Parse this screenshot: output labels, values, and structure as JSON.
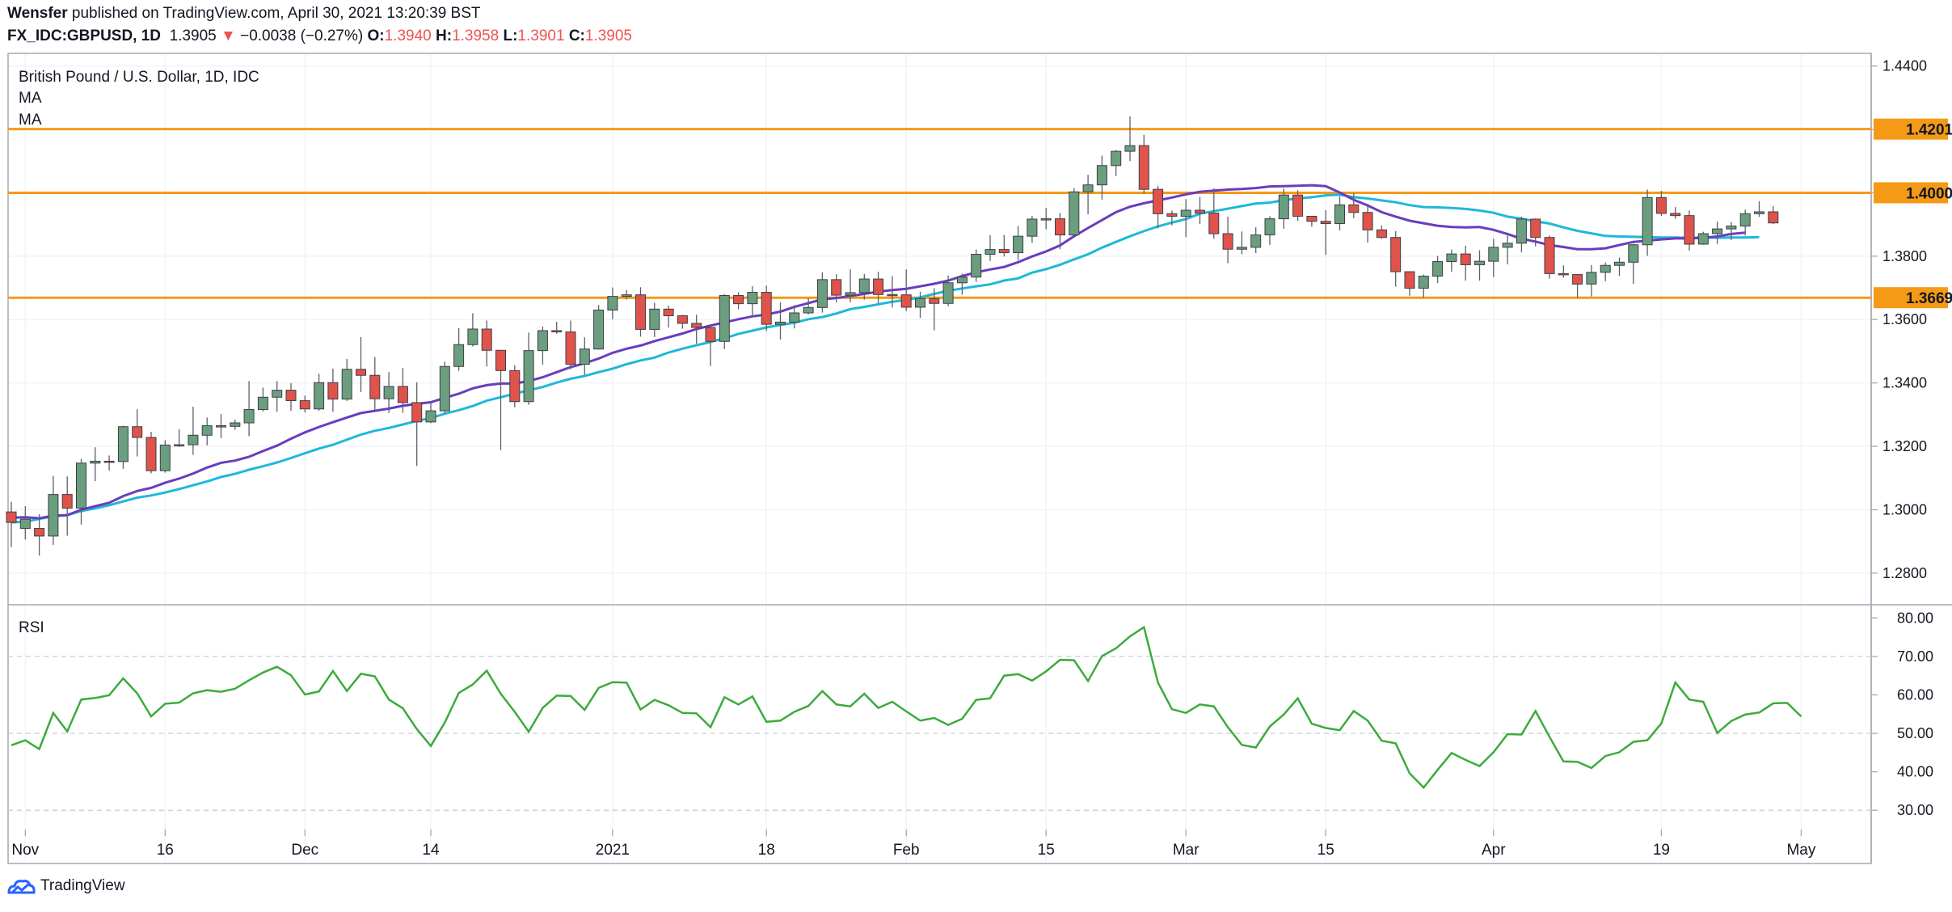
{
  "header": {
    "author": "Wensfer",
    "published_text": "published on TradingView.com, April 30, 2021 13:20:39 BST",
    "symbol": "FX_IDC:GBPUSD, 1D",
    "last": "1.3905",
    "change_arrow": "▼",
    "change": "−0.0038 (−0.27%)",
    "o_label": "O:",
    "o_value": "1.3940",
    "h_label": "H:",
    "h_value": "1.3958",
    "l_label": "L:",
    "l_value": "1.3901",
    "c_label": "C:",
    "c_value": "1.3905"
  },
  "legend": {
    "title": "British Pound / U.S. Dollar, 1D, IDC",
    "ma1": "MA",
    "ma2": "MA",
    "rsi": "RSI"
  },
  "footer": {
    "brand": "TradingView"
  },
  "colors": {
    "up": "#6a9e7f",
    "down": "#e0534a",
    "ma_fast": "#6a3cbf",
    "ma_slow": "#1fb8d8",
    "hline": "#f59a16",
    "rsi": "#3cab3c"
  },
  "chart_data": [
    {
      "type": "candlestick",
      "ylim": [
        1.27,
        1.444
      ],
      "y_ticks": [
        "1.2800",
        "1.3000",
        "1.3200",
        "1.3400",
        "1.3600",
        "1.3800",
        "1.4000",
        "1.4200",
        "1.4400"
      ],
      "x_ticks": [
        {
          "label": "Nov",
          "index": 1
        },
        {
          "label": "16",
          "index": 11
        },
        {
          "label": "Dec",
          "index": 21
        },
        {
          "label": "14",
          "index": 30
        },
        {
          "label": "2021",
          "index": 43
        },
        {
          "label": "18",
          "index": 54
        },
        {
          "label": "Feb",
          "index": 64
        },
        {
          "label": "15",
          "index": 74
        },
        {
          "label": "Mar",
          "index": 84
        },
        {
          "label": "15",
          "index": 94
        },
        {
          "label": "Apr",
          "index": 106
        },
        {
          "label": "19",
          "index": 118
        },
        {
          "label": "May",
          "index": 128
        }
      ],
      "horizontal_lines": [
        1.4201,
        1.4,
        1.3669
      ],
      "candles": [
        [
          1.2993,
          1.296,
          1.3025,
          1.2882
        ],
        [
          1.2941,
          1.297,
          1.3011,
          1.2906
        ],
        [
          1.2941,
          1.2917,
          1.2986,
          1.2855
        ],
        [
          1.2917,
          1.3048,
          1.3107,
          1.2889
        ],
        [
          1.3048,
          1.3005,
          1.3105,
          1.2918
        ],
        [
          1.3005,
          1.3147,
          1.316,
          1.2953
        ],
        [
          1.3147,
          1.3153,
          1.3197,
          1.309
        ],
        [
          1.3153,
          1.3152,
          1.3171,
          1.3123
        ],
        [
          1.3152,
          1.3262,
          1.3265,
          1.3129
        ],
        [
          1.3262,
          1.3228,
          1.3317,
          1.3168
        ],
        [
          1.3228,
          1.3123,
          1.3246,
          1.3115
        ],
        [
          1.3123,
          1.3204,
          1.3219,
          1.3117
        ],
        [
          1.3204,
          1.3205,
          1.3254,
          1.3198
        ],
        [
          1.3205,
          1.3235,
          1.3325,
          1.3173
        ],
        [
          1.3235,
          1.3265,
          1.3291,
          1.3203
        ],
        [
          1.3265,
          1.3263,
          1.3302,
          1.3226
        ],
        [
          1.3263,
          1.3274,
          1.3284,
          1.3252
        ],
        [
          1.3274,
          1.3316,
          1.3406,
          1.3232
        ],
        [
          1.3316,
          1.3355,
          1.3385,
          1.331
        ],
        [
          1.3355,
          1.3377,
          1.3406,
          1.3309
        ],
        [
          1.3377,
          1.3344,
          1.3399,
          1.3312
        ],
        [
          1.3344,
          1.3318,
          1.336,
          1.3307
        ],
        [
          1.3318,
          1.3401,
          1.3429,
          1.3312
        ],
        [
          1.3401,
          1.3349,
          1.3445,
          1.3309
        ],
        [
          1.3349,
          1.3443,
          1.3476,
          1.3343
        ],
        [
          1.3443,
          1.3424,
          1.3545,
          1.3371
        ],
        [
          1.3424,
          1.335,
          1.3482,
          1.3314
        ],
        [
          1.335,
          1.3389,
          1.3434,
          1.3305
        ],
        [
          1.3389,
          1.3338,
          1.3447,
          1.3305
        ],
        [
          1.3338,
          1.3277,
          1.3402,
          1.3138
        ],
        [
          1.3277,
          1.3312,
          1.3339,
          1.3273
        ],
        [
          1.3312,
          1.3452,
          1.3467,
          1.3304
        ],
        [
          1.3452,
          1.3521,
          1.3573,
          1.3438
        ],
        [
          1.3521,
          1.357,
          1.362,
          1.3515
        ],
        [
          1.357,
          1.3503,
          1.3597,
          1.3452
        ],
        [
          1.3503,
          1.3439,
          1.3503,
          1.3188
        ],
        [
          1.3439,
          1.3341,
          1.3456,
          1.3323
        ],
        [
          1.3341,
          1.3502,
          1.3559,
          1.3331
        ],
        [
          1.3502,
          1.3565,
          1.3578,
          1.3458
        ],
        [
          1.3565,
          1.3561,
          1.3593,
          1.3555
        ],
        [
          1.3561,
          1.3459,
          1.3597,
          1.3443
        ],
        [
          1.3459,
          1.3507,
          1.3544,
          1.3426
        ],
        [
          1.3507,
          1.363,
          1.3646,
          1.3505
        ],
        [
          1.363,
          1.3673,
          1.3701,
          1.3601
        ],
        [
          1.3673,
          1.3678,
          1.3693,
          1.3663
        ],
        [
          1.3678,
          1.3569,
          1.3702,
          1.3546
        ],
        [
          1.3569,
          1.3633,
          1.3653,
          1.3545
        ],
        [
          1.3633,
          1.3612,
          1.3644,
          1.3575
        ],
        [
          1.3612,
          1.3588,
          1.3615,
          1.3571
        ],
        [
          1.3588,
          1.3575,
          1.3615,
          1.3524
        ],
        [
          1.3575,
          1.3531,
          1.358,
          1.3453
        ],
        [
          1.3531,
          1.3676,
          1.368,
          1.3507
        ],
        [
          1.3676,
          1.365,
          1.3686,
          1.3633
        ],
        [
          1.365,
          1.3686,
          1.3705,
          1.3607
        ],
        [
          1.3686,
          1.3585,
          1.3707,
          1.3564
        ],
        [
          1.3585,
          1.3592,
          1.3654,
          1.3537
        ],
        [
          1.3592,
          1.3621,
          1.3645,
          1.3572
        ],
        [
          1.3621,
          1.3638,
          1.3667,
          1.3616
        ],
        [
          1.3638,
          1.3726,
          1.3749,
          1.3622
        ],
        [
          1.3726,
          1.3677,
          1.3743,
          1.3654
        ],
        [
          1.3677,
          1.3685,
          1.3758,
          1.3654
        ],
        [
          1.3685,
          1.3728,
          1.3744,
          1.3663
        ],
        [
          1.3728,
          1.3679,
          1.3751,
          1.3652
        ],
        [
          1.3679,
          1.3678,
          1.3737,
          1.3638
        ],
        [
          1.3678,
          1.3639,
          1.3758,
          1.3627
        ],
        [
          1.3639,
          1.3666,
          1.3688,
          1.3605
        ],
        [
          1.3666,
          1.3651,
          1.3699,
          1.3566
        ],
        [
          1.3651,
          1.3716,
          1.3739,
          1.3642
        ],
        [
          1.3716,
          1.3734,
          1.3745,
          1.3678
        ],
        [
          1.3734,
          1.3806,
          1.3821,
          1.3719
        ],
        [
          1.3806,
          1.3821,
          1.3866,
          1.3785
        ],
        [
          1.3821,
          1.3811,
          1.3867,
          1.3799
        ],
        [
          1.3811,
          1.3863,
          1.3895,
          1.3788
        ],
        [
          1.3863,
          1.3917,
          1.3927,
          1.3842
        ],
        [
          1.3917,
          1.3918,
          1.3952,
          1.3885
        ],
        [
          1.3918,
          1.3867,
          1.3936,
          1.3822
        ],
        [
          1.3867,
          1.4003,
          1.4015,
          1.3863
        ],
        [
          1.4003,
          1.4025,
          1.4057,
          1.3932
        ],
        [
          1.4025,
          1.4086,
          1.4117,
          1.3978
        ],
        [
          1.4086,
          1.4131,
          1.4135,
          1.4053
        ],
        [
          1.4131,
          1.4149,
          1.4241,
          1.41
        ],
        [
          1.4149,
          1.4011,
          1.4183,
          1.3997
        ],
        [
          1.4011,
          1.3934,
          1.4022,
          1.3888
        ],
        [
          1.3934,
          1.3926,
          1.3944,
          1.3897
        ],
        [
          1.3926,
          1.3945,
          1.398,
          1.386
        ],
        [
          1.3945,
          1.3936,
          1.3987,
          1.3901
        ],
        [
          1.3936,
          1.3871,
          1.4014,
          1.3855
        ],
        [
          1.3871,
          1.3822,
          1.3925,
          1.3778
        ],
        [
          1.3822,
          1.3828,
          1.3878,
          1.3806
        ],
        [
          1.3828,
          1.3867,
          1.3891,
          1.381
        ],
        [
          1.3867,
          1.3918,
          1.3926,
          1.3835
        ],
        [
          1.3918,
          1.3993,
          1.4013,
          1.3886
        ],
        [
          1.3993,
          1.3926,
          1.4008,
          1.3911
        ],
        [
          1.3926,
          1.391,
          1.3926,
          1.3893
        ],
        [
          1.391,
          1.3903,
          1.3945,
          1.3804
        ],
        [
          1.3903,
          1.3962,
          1.3989,
          1.3881
        ],
        [
          1.3962,
          1.3938,
          1.3999,
          1.392
        ],
        [
          1.3938,
          1.3883,
          1.3965,
          1.3843
        ],
        [
          1.3883,
          1.3859,
          1.3897,
          1.3855
        ],
        [
          1.3859,
          1.3751,
          1.3879,
          1.3704
        ],
        [
          1.3751,
          1.3699,
          1.3752,
          1.3675
        ],
        [
          1.3699,
          1.3737,
          1.3742,
          1.3669
        ],
        [
          1.3737,
          1.3783,
          1.3801,
          1.3715
        ],
        [
          1.3783,
          1.3807,
          1.3821,
          1.3751
        ],
        [
          1.3807,
          1.3773,
          1.3833,
          1.3723
        ],
        [
          1.3773,
          1.3784,
          1.3819,
          1.3723
        ],
        [
          1.3784,
          1.3828,
          1.3855,
          1.3734
        ],
        [
          1.3828,
          1.3841,
          1.3868,
          1.3774
        ],
        [
          1.3841,
          1.3917,
          1.3925,
          1.3812
        ],
        [
          1.3917,
          1.3859,
          1.3919,
          1.3831
        ],
        [
          1.3859,
          1.3745,
          1.3865,
          1.3729
        ],
        [
          1.3745,
          1.3742,
          1.3771,
          1.3732
        ],
        [
          1.3742,
          1.3712,
          1.3742,
          1.3669
        ],
        [
          1.3712,
          1.3749,
          1.3772,
          1.3673
        ],
        [
          1.3749,
          1.3771,
          1.378,
          1.3721
        ],
        [
          1.3771,
          1.3781,
          1.3796,
          1.3738
        ],
        [
          1.3781,
          1.3836,
          1.3839,
          1.3713
        ],
        [
          1.3836,
          1.3985,
          1.401,
          1.3801
        ],
        [
          1.3985,
          1.3935,
          1.4006,
          1.3927
        ],
        [
          1.3935,
          1.3928,
          1.3955,
          1.3918
        ],
        [
          1.3928,
          1.3838,
          1.3944,
          1.3818
        ],
        [
          1.3838,
          1.3871,
          1.3877,
          1.3836
        ],
        [
          1.3871,
          1.3886,
          1.3909,
          1.3839
        ],
        [
          1.3886,
          1.3895,
          1.3908,
          1.3851
        ],
        [
          1.3895,
          1.3934,
          1.3947,
          1.3865
        ],
        [
          1.3934,
          1.394,
          1.3973,
          1.3924
        ],
        [
          1.394,
          1.3905,
          1.3958,
          1.3901
        ]
      ],
      "ma_fast_values": [
        1.2975,
        1.2976,
        1.2973,
        1.2981,
        1.2983,
        1.3,
        1.3011,
        1.3022,
        1.3043,
        1.3059,
        1.3069,
        1.3085,
        1.3098,
        1.3114,
        1.3133,
        1.3148,
        1.3155,
        1.3167,
        1.3185,
        1.3202,
        1.3224,
        1.3244,
        1.3261,
        1.3276,
        1.3291,
        1.3305,
        1.3312,
        1.3319,
        1.3328,
        1.3334,
        1.3339,
        1.3353,
        1.3366,
        1.3383,
        1.3393,
        1.3398,
        1.3398,
        1.3406,
        1.3418,
        1.3434,
        1.345,
        1.3462,
        1.3477,
        1.3495,
        1.3508,
        1.3518,
        1.3532,
        1.3544,
        1.3556,
        1.357,
        1.3581,
        1.3591,
        1.3601,
        1.361,
        1.3616,
        1.3625,
        1.364,
        1.3652,
        1.3664,
        1.3668,
        1.3674,
        1.3681,
        1.3688,
        1.3693,
        1.3697,
        1.3705,
        1.3713,
        1.3723,
        1.3737,
        1.3749,
        1.3758,
        1.3766,
        1.3781,
        1.3799,
        1.3815,
        1.3834,
        1.3863,
        1.3889,
        1.3914,
        1.3939,
        1.3956,
        1.3967,
        1.3976,
        1.3985,
        1.3995,
        1.4003,
        1.4007,
        1.401,
        1.4012,
        1.4015,
        1.402,
        1.4021,
        1.4022,
        1.4024,
        1.4021,
        1.4001,
        1.3978,
        1.396,
        1.3939,
        1.3925,
        1.3912,
        1.3904,
        1.3896,
        1.3892,
        1.3891,
        1.3892,
        1.3883,
        1.387,
        1.3855,
        1.3846,
        1.3835,
        1.3829,
        1.3822,
        1.3822,
        1.3825,
        1.3835,
        1.3845,
        1.3849,
        1.3853,
        1.3856,
        1.3856,
        1.3858,
        1.3862,
        1.387,
        1.3874
      ],
      "ma_slow_values": [
        1.296,
        1.2962,
        1.2971,
        1.2979,
        1.2983,
        1.2996,
        1.3004,
        1.3014,
        1.3026,
        1.3038,
        1.3045,
        1.3054,
        1.3065,
        1.3077,
        1.3089,
        1.3103,
        1.3113,
        1.3126,
        1.3137,
        1.3149,
        1.3163,
        1.3178,
        1.3193,
        1.3205,
        1.3221,
        1.3237,
        1.3249,
        1.3258,
        1.3269,
        1.328,
        1.3289,
        1.3303,
        1.3314,
        1.3327,
        1.3344,
        1.3355,
        1.3366,
        1.3377,
        1.3387,
        1.3401,
        1.3413,
        1.3422,
        1.3434,
        1.3445,
        1.3459,
        1.3471,
        1.348,
        1.3496,
        1.3508,
        1.3519,
        1.3529,
        1.3541,
        1.3555,
        1.3565,
        1.3575,
        1.3583,
        1.359,
        1.3601,
        1.3608,
        1.3619,
        1.3633,
        1.364,
        1.3648,
        1.3656,
        1.3662,
        1.367,
        1.3681,
        1.3691,
        1.3698,
        1.3705,
        1.3711,
        1.3723,
        1.373,
        1.3748,
        1.3759,
        1.3773,
        1.379,
        1.3806,
        1.3827,
        1.3845,
        1.3863,
        1.3879,
        1.3894,
        1.3906,
        1.3917,
        1.3934,
        1.3942,
        1.395,
        1.3958,
        1.3966,
        1.3969,
        1.3977,
        1.3982,
        1.3986,
        1.3992,
        1.3994,
        1.3986,
        1.3982,
        1.3976,
        1.397,
        1.3961,
        1.3955,
        1.3954,
        1.3952,
        1.3949,
        1.3944,
        1.3937,
        1.3925,
        1.3918,
        1.391,
        1.3903,
        1.3891,
        1.388,
        1.3872,
        1.3864,
        1.3862,
        1.3861,
        1.386,
        1.3859,
        1.3859,
        1.3858,
        1.3859,
        1.3858,
        1.3859,
        1.3859,
        1.386
      ]
    },
    {
      "type": "line",
      "name": "RSI",
      "ylim": [
        25,
        83
      ],
      "y_ticks": [
        "30.00",
        "40.00",
        "50.00",
        "60.00",
        "70.00",
        "80.00"
      ],
      "dashed_levels": [
        30,
        50,
        70
      ],
      "values": [
        46.9,
        48.2,
        45.9,
        55.3,
        50.5,
        58.8,
        59.2,
        59.9,
        64.3,
        60.4,
        54.4,
        57.7,
        58.0,
        60.4,
        61.2,
        60.8,
        61.6,
        63.8,
        65.8,
        67.3,
        65.1,
        60.1,
        60.9,
        66.2,
        61.0,
        65.5,
        64.8,
        58.8,
        56.5,
        51.1,
        46.7,
        52.8,
        60.5,
        62.7,
        66.3,
        60.3,
        55.6,
        50.4,
        56.6,
        59.8,
        59.7,
        56.1,
        61.8,
        63.3,
        63.2,
        56.2,
        58.7,
        57.3,
        55.3,
        55.2,
        51.6,
        59.4,
        57.5,
        59.6,
        53.0,
        53.3,
        55.6,
        57.1,
        61.0,
        57.5,
        57.0,
        60.3,
        56.6,
        58.2,
        55.7,
        53.3,
        54.0,
        52.2,
        53.8,
        58.7,
        59.1,
        65.0,
        65.4,
        63.7,
        66.1,
        69.1,
        69.0,
        63.6,
        70.1,
        72.1,
        75.2,
        77.6,
        63.2,
        56.3,
        55.3,
        57.5,
        57.0,
        51.6,
        47.0,
        46.3,
        51.8,
        54.9,
        59.1,
        52.5,
        51.4,
        50.8,
        55.8,
        53.3,
        48.1,
        47.4,
        39.6,
        35.9,
        40.5,
        44.9,
        43.1,
        41.5,
        45.1,
        49.8,
        49.7,
        55.8,
        49.1,
        42.7,
        42.6,
        41.0,
        44.1,
        45.1,
        47.8,
        48.2,
        52.6,
        63.2,
        58.8,
        58.2,
        50.1,
        53.2,
        54.9,
        55.4,
        57.8,
        57.9,
        54.4
      ]
    }
  ]
}
